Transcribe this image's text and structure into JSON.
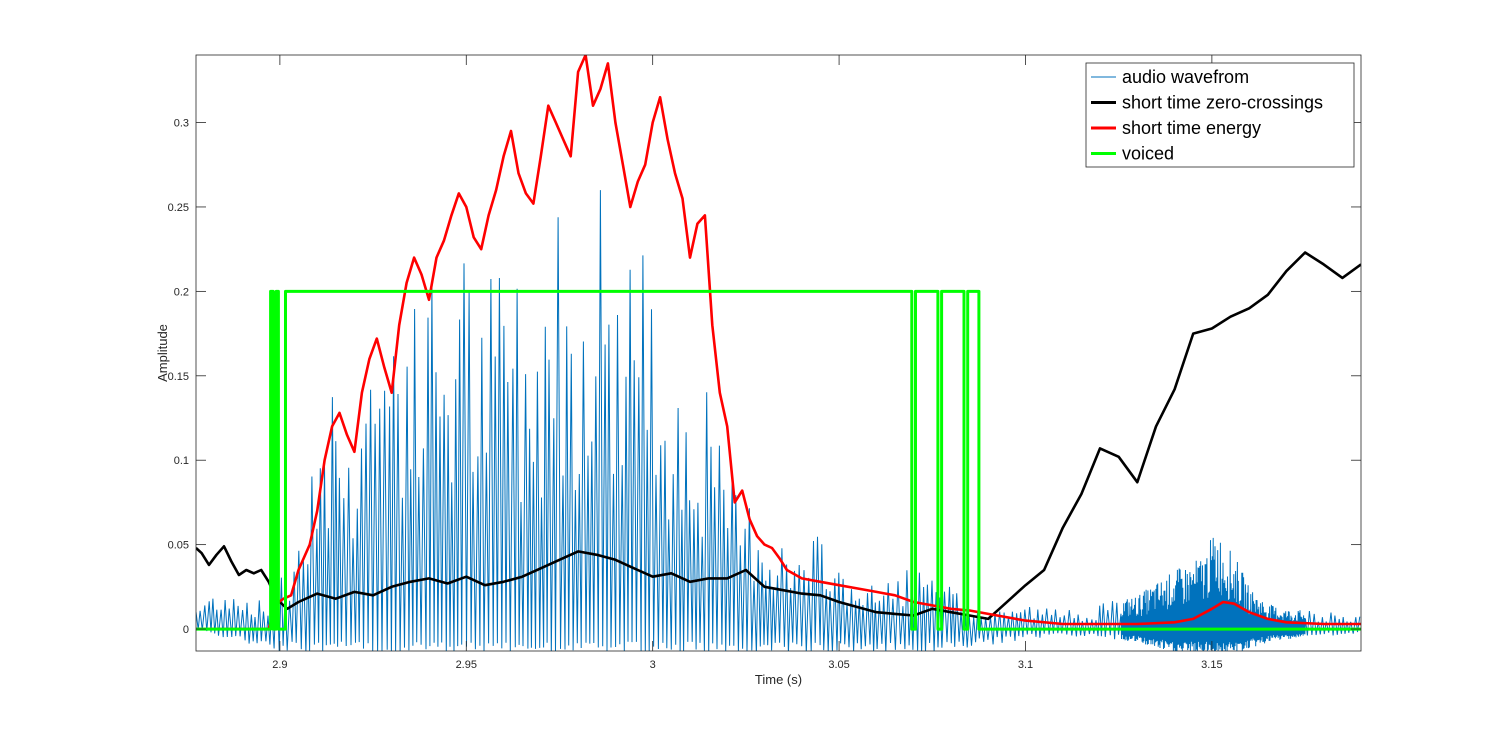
{
  "chart_data": {
    "type": "line",
    "title": "",
    "xlabel": "Time (s)",
    "ylabel": "Amplitude",
    "xlim": [
      2.8775,
      3.19
    ],
    "ylim": [
      -0.013,
      0.34
    ],
    "xticks": [
      2.9,
      2.95,
      3,
      3.05,
      3.1,
      3.15
    ],
    "xtick_labels": [
      "2.9",
      "2.95",
      "3",
      "3.05",
      "3.1",
      "3.15"
    ],
    "yticks": [
      0,
      0.05,
      0.1,
      0.15,
      0.2,
      0.25,
      0.3
    ],
    "ytick_labels": [
      "0",
      "0.05",
      "0.1",
      "0.15",
      "0.2",
      "0.25",
      "0.3"
    ],
    "grid": false,
    "legend_position": "top-right",
    "colors": {
      "audio": "#0072bd",
      "zcr": "#000000",
      "energy": "#ff0000",
      "voiced": "#00ff00"
    },
    "series": [
      {
        "name": "audio wavefrom",
        "style": "oscillating waveform envelope",
        "x": [
          2.8775,
          2.885,
          2.892,
          2.897,
          2.9,
          2.903,
          2.906,
          2.91,
          2.914,
          2.918,
          2.922,
          2.926,
          2.93,
          2.934,
          2.938,
          2.942,
          2.946,
          2.95,
          2.954,
          2.958,
          2.962,
          2.966,
          2.97,
          2.974,
          2.978,
          2.982,
          2.986,
          2.99,
          2.994,
          2.998,
          3.002,
          3.006,
          3.01,
          3.014,
          3.018,
          3.022,
          3.026,
          3.03,
          3.034,
          3.038,
          3.042,
          3.046,
          3.05,
          3.055,
          3.06,
          3.065,
          3.07,
          3.075,
          3.08,
          3.085,
          3.09,
          3.095,
          3.1,
          3.11,
          3.12,
          3.13,
          3.14,
          3.145,
          3.148,
          3.151,
          3.154,
          3.157,
          3.16,
          3.165,
          3.17,
          3.18,
          3.19
        ],
        "peaks": [
          0.015,
          0.028,
          0.02,
          0.015,
          0.045,
          0.03,
          0.09,
          0.13,
          0.16,
          0.11,
          0.17,
          0.19,
          0.21,
          0.2,
          0.19,
          0.23,
          0.2,
          0.24,
          0.18,
          0.23,
          0.25,
          0.17,
          0.22,
          0.28,
          0.22,
          0.25,
          0.28,
          0.21,
          0.26,
          0.22,
          0.19,
          0.18,
          0.14,
          0.15,
          0.11,
          0.09,
          0.08,
          0.065,
          0.055,
          0.045,
          0.05,
          0.06,
          0.04,
          0.03,
          0.025,
          0.035,
          0.04,
          0.03,
          0.025,
          0.015,
          0.01,
          0.015,
          0.015,
          0.012,
          0.015,
          0.02,
          0.035,
          0.04,
          0.045,
          0.06,
          0.05,
          0.04,
          0.025,
          0.015,
          0.012,
          0.01,
          0.01
        ],
        "troughs": [
          0.0,
          -0.005,
          -0.01,
          -0.01,
          -0.015,
          -0.015,
          -0.015,
          -0.015,
          -0.015,
          -0.015,
          -0.015,
          -0.015,
          -0.015,
          -0.015,
          -0.015,
          -0.015,
          -0.015,
          -0.015,
          -0.015,
          -0.015,
          -0.015,
          -0.015,
          -0.015,
          -0.015,
          -0.015,
          -0.015,
          -0.015,
          -0.015,
          -0.015,
          -0.015,
          -0.015,
          -0.015,
          -0.015,
          -0.015,
          -0.015,
          -0.015,
          -0.015,
          -0.015,
          -0.015,
          -0.015,
          -0.015,
          -0.015,
          -0.015,
          -0.015,
          -0.015,
          -0.015,
          -0.015,
          -0.015,
          -0.015,
          -0.012,
          -0.01,
          -0.008,
          -0.006,
          -0.004,
          -0.005,
          -0.008,
          -0.015,
          -0.015,
          -0.015,
          -0.015,
          -0.015,
          -0.015,
          -0.012,
          -0.008,
          -0.006,
          -0.004,
          -0.003
        ]
      },
      {
        "name": "short time zero-crossings",
        "x": [
          2.8775,
          2.879,
          2.881,
          2.883,
          2.885,
          2.887,
          2.889,
          2.891,
          2.893,
          2.895,
          2.897,
          2.899,
          2.902,
          2.905,
          2.91,
          2.915,
          2.92,
          2.925,
          2.93,
          2.935,
          2.94,
          2.945,
          2.95,
          2.955,
          2.96,
          2.965,
          2.97,
          2.975,
          2.98,
          2.985,
          2.99,
          2.995,
          3.0,
          3.005,
          3.01,
          3.015,
          3.02,
          3.025,
          3.03,
          3.035,
          3.04,
          3.045,
          3.05,
          3.055,
          3.06,
          3.065,
          3.07,
          3.075,
          3.08,
          3.085,
          3.09,
          3.093,
          3.096,
          3.1,
          3.105,
          3.11,
          3.115,
          3.12,
          3.125,
          3.13,
          3.135,
          3.14,
          3.145,
          3.15,
          3.155,
          3.16,
          3.165,
          3.17,
          3.175,
          3.18,
          3.185,
          3.19
        ],
        "y": [
          0.048,
          0.045,
          0.038,
          0.044,
          0.049,
          0.04,
          0.032,
          0.035,
          0.033,
          0.035,
          0.028,
          0.018,
          0.012,
          0.016,
          0.021,
          0.018,
          0.022,
          0.02,
          0.025,
          0.028,
          0.03,
          0.027,
          0.031,
          0.026,
          0.028,
          0.031,
          0.036,
          0.041,
          0.046,
          0.044,
          0.041,
          0.036,
          0.031,
          0.033,
          0.028,
          0.03,
          0.03,
          0.035,
          0.025,
          0.023,
          0.021,
          0.02,
          0.016,
          0.013,
          0.01,
          0.009,
          0.008,
          0.012,
          0.01,
          0.008,
          0.006,
          0.012,
          0.018,
          0.026,
          0.035,
          0.06,
          0.08,
          0.107,
          0.102,
          0.087,
          0.12,
          0.142,
          0.175,
          0.178,
          0.185,
          0.19,
          0.198,
          0.212,
          0.223,
          0.216,
          0.208,
          0.216
        ]
      },
      {
        "name": "short time energy",
        "x": [
          2.8775,
          2.89,
          2.897,
          2.899,
          2.901,
          2.903,
          2.905,
          2.908,
          2.91,
          2.912,
          2.914,
          2.916,
          2.918,
          2.92,
          2.922,
          2.924,
          2.926,
          2.928,
          2.93,
          2.932,
          2.934,
          2.936,
          2.938,
          2.94,
          2.942,
          2.944,
          2.946,
          2.948,
          2.95,
          2.952,
          2.954,
          2.956,
          2.958,
          2.96,
          2.962,
          2.964,
          2.966,
          2.968,
          2.97,
          2.972,
          2.974,
          2.976,
          2.978,
          2.98,
          2.982,
          2.984,
          2.986,
          2.988,
          2.99,
          2.992,
          2.994,
          2.996,
          2.998,
          3.0,
          3.002,
          3.004,
          3.006,
          3.008,
          3.01,
          3.012,
          3.014,
          3.016,
          3.018,
          3.02,
          3.022,
          3.024,
          3.026,
          3.028,
          3.03,
          3.032,
          3.034,
          3.036,
          3.04,
          3.045,
          3.05,
          3.055,
          3.06,
          3.065,
          3.07,
          3.075,
          3.08,
          3.085,
          3.09,
          3.1,
          3.11,
          3.12,
          3.13,
          3.14,
          3.145,
          3.15,
          3.153,
          3.156,
          3.16,
          3.165,
          3.17,
          3.18,
          3.19
        ],
        "y": [
          0.0,
          0.0,
          0.0,
          0.015,
          0.018,
          0.02,
          0.035,
          0.05,
          0.07,
          0.1,
          0.12,
          0.128,
          0.115,
          0.105,
          0.14,
          0.16,
          0.172,
          0.155,
          0.14,
          0.18,
          0.205,
          0.22,
          0.21,
          0.195,
          0.22,
          0.23,
          0.245,
          0.258,
          0.25,
          0.232,
          0.225,
          0.245,
          0.26,
          0.28,
          0.295,
          0.27,
          0.258,
          0.252,
          0.28,
          0.31,
          0.3,
          0.29,
          0.28,
          0.33,
          0.34,
          0.31,
          0.32,
          0.335,
          0.3,
          0.275,
          0.25,
          0.265,
          0.275,
          0.3,
          0.315,
          0.29,
          0.27,
          0.255,
          0.22,
          0.24,
          0.245,
          0.18,
          0.14,
          0.12,
          0.075,
          0.082,
          0.065,
          0.055,
          0.05,
          0.048,
          0.042,
          0.035,
          0.03,
          0.028,
          0.026,
          0.024,
          0.022,
          0.02,
          0.016,
          0.014,
          0.012,
          0.011,
          0.009,
          0.005,
          0.003,
          0.003,
          0.003,
          0.004,
          0.006,
          0.012,
          0.016,
          0.015,
          0.01,
          0.006,
          0.004,
          0.003,
          0.003
        ]
      },
      {
        "name": "voiced",
        "x": [
          2.8775,
          2.8975,
          2.8975,
          2.8982,
          2.8982,
          2.899,
          2.899,
          2.8996,
          2.8996,
          2.9015,
          2.9015,
          2.902,
          2.902,
          3.0695,
          3.0695,
          3.0705,
          3.0705,
          3.0765,
          3.0765,
          3.0775,
          3.0775,
          3.0835,
          3.0835,
          3.0845,
          3.0845,
          3.0875,
          3.0875,
          3.19
        ],
        "y": [
          0,
          0,
          0.2,
          0.2,
          0,
          0,
          0.2,
          0.2,
          0,
          0,
          0.2,
          0.2,
          0.2,
          0.2,
          0,
          0,
          0.2,
          0.2,
          0,
          0,
          0.2,
          0.2,
          0,
          0,
          0.2,
          0.2,
          0,
          0
        ]
      }
    ]
  }
}
